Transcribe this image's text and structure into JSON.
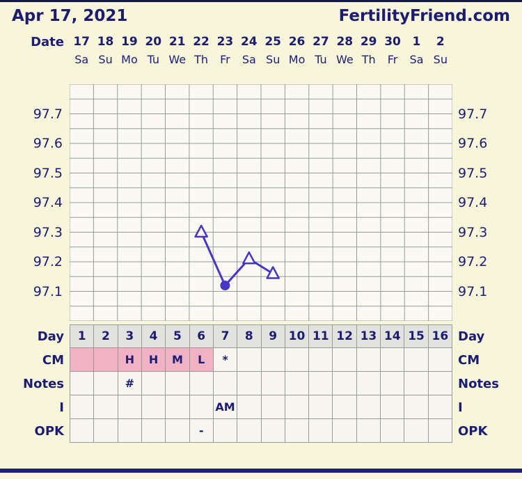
{
  "header": {
    "date": "Apr 17, 2021",
    "brand": "FertilityFriend.com"
  },
  "dates": {
    "label": "Date",
    "numbers": [
      "17",
      "18",
      "19",
      "20",
      "21",
      "22",
      "23",
      "24",
      "25",
      "26",
      "27",
      "28",
      "29",
      "30",
      "1",
      "2"
    ],
    "weekdays": [
      "Sa",
      "Su",
      "Mo",
      "Tu",
      "We",
      "Th",
      "Fr",
      "Sa",
      "Su",
      "Mo",
      "Tu",
      "We",
      "Th",
      "Fr",
      "Sa",
      "Su"
    ]
  },
  "chart_data": {
    "type": "line",
    "title": "",
    "xlabel": "",
    "ylabel": "",
    "x_cols": 16,
    "x_days": [
      6,
      7,
      8,
      9
    ],
    "values": [
      97.3,
      97.12,
      97.21,
      97.16
    ],
    "markers": [
      "triangle-open",
      "circle-filled",
      "triangle-open",
      "triangle-open"
    ],
    "ylim": [
      97.0,
      97.8
    ],
    "grid_step": 0.05,
    "y_ticks": [
      "97.7",
      "97.6",
      "97.5",
      "97.4",
      "97.3",
      "97.2",
      "97.1"
    ],
    "grid": true,
    "legend": "none",
    "line_color": "#4636c8"
  },
  "table": {
    "day": {
      "label": "Day",
      "values": [
        "1",
        "2",
        "3",
        "4",
        "5",
        "6",
        "7",
        "8",
        "9",
        "10",
        "11",
        "12",
        "13",
        "14",
        "15",
        "16"
      ]
    },
    "rows": [
      {
        "label": "CM",
        "values": [
          "",
          "",
          "H",
          "H",
          "M",
          "L",
          "*",
          "",
          "",
          "",
          "",
          "",
          "",
          "",
          "",
          ""
        ],
        "pink_cols": [
          1,
          2,
          3,
          4,
          5,
          6
        ]
      },
      {
        "label": "Notes",
        "values": [
          "",
          "",
          "#",
          "",
          "",
          "",
          "",
          "",
          "",
          "",
          "",
          "",
          "",
          "",
          "",
          ""
        ],
        "pink_cols": []
      },
      {
        "label": "I",
        "values": [
          "",
          "",
          "",
          "",
          "",
          "",
          "AM",
          "",
          "",
          "",
          "",
          "",
          "",
          "",
          "",
          ""
        ],
        "pink_cols": []
      },
      {
        "label": "OPK",
        "values": [
          "",
          "",
          "",
          "",
          "",
          "-",
          "",
          "",
          "",
          "",
          "",
          "",
          "",
          "",
          "",
          ""
        ],
        "pink_cols": []
      }
    ]
  },
  "colors": {
    "bg": "#f8f6da",
    "navy": "#1c1c72",
    "pink": "#f0b2c4",
    "grid": "#999999",
    "day_bg": "#e2e2df",
    "cell_bg": "#f6f6ee",
    "chart_bg": "#fafaf2",
    "bar": "#20207a"
  }
}
